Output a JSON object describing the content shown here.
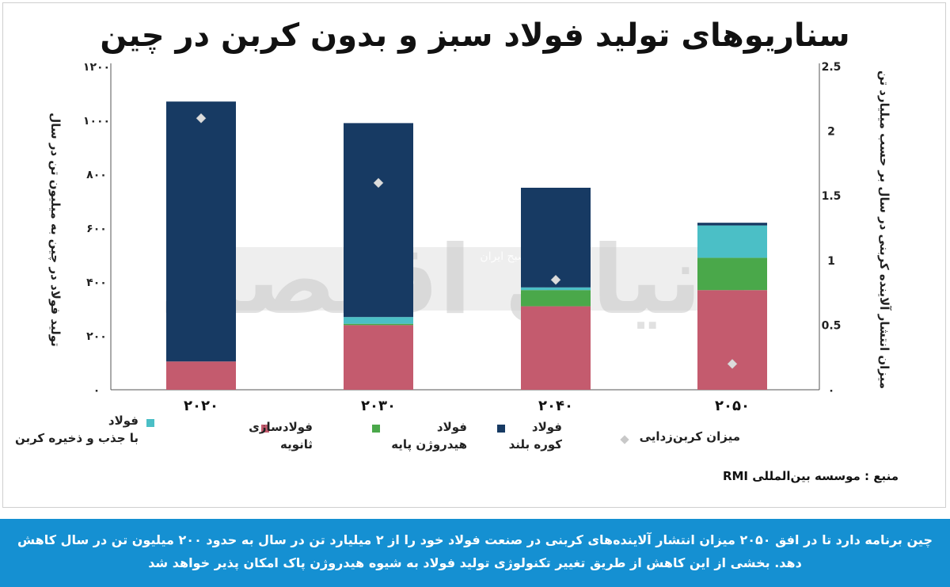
{
  "chart_data": {
    "type": "bar",
    "stacked": true,
    "title": "سناریوهای تولید فولاد سبز و بدون کربن در چین",
    "categories": [
      "۲۰۲۰",
      "۲۰۳۰",
      "۲۰۴۰",
      "۲۰۵۰"
    ],
    "ylabel_left": "تولید فولاد در چین به میلیون تن در سال",
    "ylabel_right": "میزان انتشار آلاینده کربنی در سال بر حسب میلیارد تن",
    "ylim_left": [
      0,
      1200
    ],
    "ylim_right": [
      0,
      2.5
    ],
    "yticks_left": [
      "۰",
      "۲۰۰",
      "۴۰۰",
      "۶۰۰",
      "۸۰۰",
      "۱۰۰۰",
      "۱۲۰۰"
    ],
    "yticks_right": [
      "۰",
      "0.5",
      "1",
      "1.5",
      "2",
      "2.5"
    ],
    "series": [
      {
        "key": "secondary",
        "values": [
          105,
          240,
          310,
          370
        ],
        "color": "#c45b6e"
      },
      {
        "key": "hydrogen",
        "values": [
          0,
          5,
          60,
          120
        ],
        "color": "#4aa84a"
      },
      {
        "key": "ccs",
        "values": [
          0,
          25,
          10,
          120
        ],
        "color": "#4bbfc6"
      },
      {
        "key": "blast",
        "values": [
          965,
          720,
          370,
          10
        ],
        "color": "#173a63"
      }
    ],
    "decarbonization": {
      "values": [
        2.1,
        1.6,
        0.85,
        0.2
      ],
      "color": "#dcdcdc"
    }
  },
  "legend": [
    {
      "key": "ccs",
      "line1": "فولاد",
      "line2": "با جذب و ذخیره کربن",
      "color": "#4bbfc6"
    },
    {
      "key": "secondary",
      "line1": "فولادسازی",
      "line2": "ثانویه",
      "color": "#c45b6e"
    },
    {
      "key": "hydrogen",
      "line1": "فولاد",
      "line2": "هیدروژن پایه",
      "color": "#4aa84a"
    },
    {
      "key": "blast",
      "line1": "فولاد",
      "line2": "کوره بلند",
      "color": "#173a63"
    },
    {
      "key": "decarb",
      "line1": "میزان کربن‌زدایی",
      "line2": "",
      "color": "#c8c8c8"
    }
  ],
  "watermark": {
    "main": "دنیای اقتصاد",
    "sub": "روزنامه صبح ایران"
  },
  "source": "منبع : موسسه بین‌المللی RMI",
  "caption": "چین برنامه دارد تا در افق ۲۰۵۰ میزان انتشار آلاینده‌های کربنی در صنعت فولاد خود را از ۲ میلیارد تن در سال به حدود ۲۰۰ میلیون تن در سال کاهش دهد. بخشی از این کاهش از طریق تغییر تکنولوژی تولید فولاد به شیوه هیدروژن پاک امکان پذیر خواهد شد"
}
